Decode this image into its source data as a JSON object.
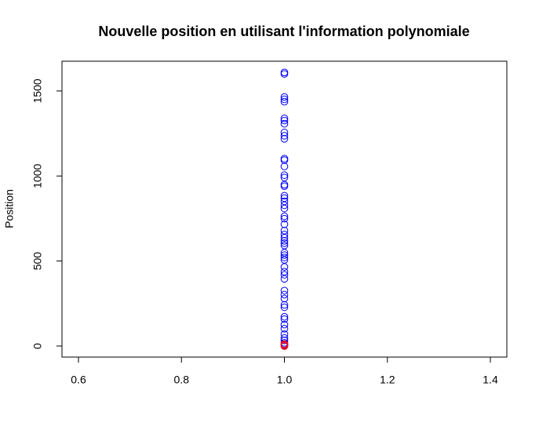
{
  "chart_data": {
    "type": "scatter",
    "title": "Nouvelle position en utilisant l'information polynomiale",
    "y_label": "Position",
    "xlim": [
      0.568,
      1.432
    ],
    "ylim": [
      -65,
      1675
    ],
    "xticks": [
      0.6,
      0.8,
      {
        "value": 1,
        "label": "1.0"
      },
      1.2,
      1.4
    ],
    "yticks": [
      0,
      500,
      1000,
      1500
    ],
    "series": [
      {
        "color": "#0000ff",
        "x": [
          1,
          1,
          1,
          1,
          1,
          1,
          1,
          1,
          1,
          1,
          1,
          1,
          1,
          1,
          1,
          1,
          1,
          1,
          1,
          1,
          1,
          1,
          1,
          1,
          1,
          1,
          1,
          1,
          1,
          1,
          1,
          1,
          1,
          1,
          1,
          1,
          1,
          1,
          1,
          1,
          1,
          1,
          1,
          1,
          1,
          1,
          1,
          1,
          1,
          1,
          1,
          1,
          1,
          1,
          1
        ],
        "values": [
          1609,
          1600,
          1465,
          1451,
          1437,
          1339,
          1326,
          1307,
          1256,
          1237,
          1219,
          1102,
          1093,
          1056,
          1005,
          991,
          949,
          940,
          884,
          870,
          851,
          828,
          809,
          763,
          749,
          716,
          679,
          656,
          637,
          619,
          605,
          591,
          549,
          535,
          521,
          507,
          465,
          437,
          419,
          395,
          326,
          302,
          279,
          242,
          228,
          172,
          158,
          126,
          102,
          70,
          47,
          33,
          19,
          9,
          0
        ]
      },
      {
        "color": "#ff0000",
        "x": [
          1,
          1,
          1
        ],
        "values": [
          0,
          5,
          12
        ]
      }
    ]
  }
}
